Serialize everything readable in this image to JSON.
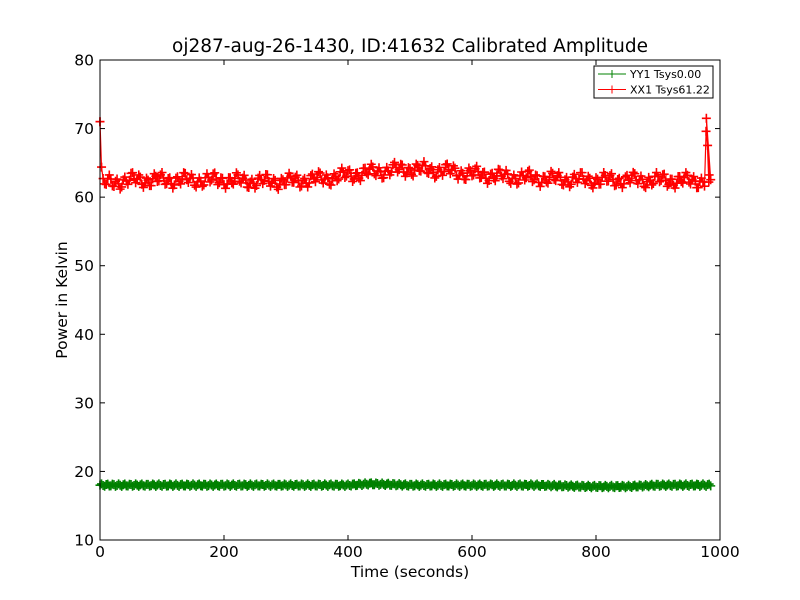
{
  "chart_data": {
    "type": "line",
    "title": "oj287-aug-26-1430, ID:41632 Calibrated Amplitude",
    "xlabel": "Time (seconds)",
    "ylabel": "Power in Kelvin",
    "xlim": [
      0,
      1000
    ],
    "ylim": [
      10,
      80
    ],
    "xticks": [
      0,
      200,
      400,
      600,
      800,
      1000
    ],
    "yticks": [
      10,
      20,
      30,
      40,
      50,
      60,
      70,
      80
    ],
    "grid": false,
    "legend_position": "top-right",
    "series": [
      {
        "name": "YY1 Tsys0.00",
        "color": "#008000",
        "marker": "+",
        "x_start": 0,
        "x_end": 985,
        "points": [
          {
            "x": 0,
            "y": 18.0
          },
          {
            "x": 100,
            "y": 18.0
          },
          {
            "x": 200,
            "y": 18.0
          },
          {
            "x": 300,
            "y": 18.0
          },
          {
            "x": 400,
            "y": 18.0
          },
          {
            "x": 435,
            "y": 18.2
          },
          {
            "x": 500,
            "y": 18.0
          },
          {
            "x": 600,
            "y": 18.0
          },
          {
            "x": 700,
            "y": 18.0
          },
          {
            "x": 790,
            "y": 17.8
          },
          {
            "x": 850,
            "y": 17.8
          },
          {
            "x": 900,
            "y": 18.0
          },
          {
            "x": 985,
            "y": 18.0
          }
        ]
      },
      {
        "name": "XX1 Tsys61.22",
        "color": "#ff0000",
        "marker": "+",
        "x_start": 0,
        "x_end": 985,
        "points": [
          {
            "x": 0,
            "y": 71.0
          },
          {
            "x": 3,
            "y": 62.0
          },
          {
            "x": 50,
            "y": 62.5
          },
          {
            "x": 100,
            "y": 62.5
          },
          {
            "x": 150,
            "y": 62.5
          },
          {
            "x": 200,
            "y": 62.5
          },
          {
            "x": 250,
            "y": 62.3
          },
          {
            "x": 300,
            "y": 62.3
          },
          {
            "x": 350,
            "y": 62.6
          },
          {
            "x": 400,
            "y": 63.2
          },
          {
            "x": 450,
            "y": 63.8
          },
          {
            "x": 500,
            "y": 64.1
          },
          {
            "x": 550,
            "y": 63.9
          },
          {
            "x": 600,
            "y": 63.4
          },
          {
            "x": 650,
            "y": 63.0
          },
          {
            "x": 700,
            "y": 62.8
          },
          {
            "x": 750,
            "y": 62.6
          },
          {
            "x": 800,
            "y": 62.5
          },
          {
            "x": 850,
            "y": 62.5
          },
          {
            "x": 900,
            "y": 62.5
          },
          {
            "x": 950,
            "y": 62.4
          },
          {
            "x": 975,
            "y": 62.4
          },
          {
            "x": 978,
            "y": 71.5
          },
          {
            "x": 982,
            "y": 62.2
          }
        ]
      }
    ]
  }
}
